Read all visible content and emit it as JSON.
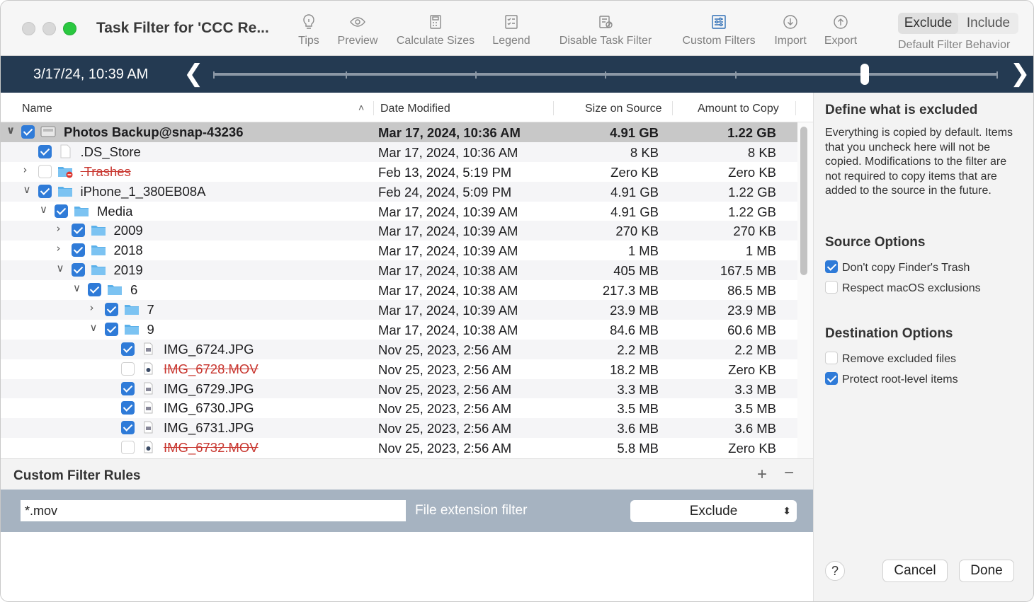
{
  "window": {
    "title": "Task Filter for 'CCC Re..."
  },
  "toolbar": {
    "items": [
      {
        "label": "Tips",
        "icon": "lightbulb-icon"
      },
      {
        "label": "Preview",
        "icon": "eye-icon"
      },
      {
        "label": "Calculate Sizes",
        "icon": "calculator-icon"
      },
      {
        "label": "Legend",
        "icon": "legend-icon"
      },
      {
        "label": "Disable Task Filter",
        "icon": "filter-disable-icon"
      },
      {
        "label": "Custom Filters",
        "icon": "sliders-icon"
      },
      {
        "label": "Import",
        "icon": "import-icon"
      },
      {
        "label": "Export",
        "icon": "export-icon"
      }
    ],
    "behavior": {
      "exclude": "Exclude",
      "include": "Include",
      "label": "Default Filter Behavior",
      "selected": "Exclude"
    }
  },
  "timeline": {
    "date": "3/17/24, 10:39 AM",
    "prev": "❮",
    "next": "❯"
  },
  "table": {
    "headers": {
      "name": "Name",
      "sort": "˄",
      "date": "Date Modified",
      "size": "Size on Source",
      "amount": "Amount to Copy"
    },
    "rows": [
      {
        "name": "Photos Backup@snap-43236",
        "date": "Mar 17, 2024, 10:36 AM",
        "size": "4.91 GB",
        "amount": "1.22 GB",
        "level": 0,
        "chevron": "∨",
        "checked": true,
        "icon": "disk-icon",
        "strike": false,
        "selected": true
      },
      {
        "name": ".DS_Store",
        "date": "Mar 17, 2024, 10:36 AM",
        "size": "8 KB",
        "amount": "8 KB",
        "level": 1,
        "chevron": "",
        "checked": true,
        "icon": "file-icon",
        "strike": false
      },
      {
        "name": ".Trashes",
        "date": "Feb 13, 2024, 5:19 PM",
        "size": "Zero KB",
        "amount": "Zero KB",
        "level": 1,
        "chevron": "›",
        "checked": false,
        "icon": "folder-excluded-icon",
        "strike": true
      },
      {
        "name": "iPhone_1_380EB08A",
        "date": "Feb 24, 2024, 5:09 PM",
        "size": "4.91 GB",
        "amount": "1.22 GB",
        "level": 1,
        "chevron": "∨",
        "checked": true,
        "icon": "folder-icon",
        "strike": false
      },
      {
        "name": "Media",
        "date": "Mar 17, 2024, 10:39 AM",
        "size": "4.91 GB",
        "amount": "1.22 GB",
        "level": 2,
        "chevron": "∨",
        "checked": true,
        "icon": "folder-icon",
        "strike": false
      },
      {
        "name": "2009",
        "date": "Mar 17, 2024, 10:39 AM",
        "size": "270 KB",
        "amount": "270 KB",
        "level": 3,
        "chevron": "›",
        "checked": true,
        "icon": "folder-icon",
        "strike": false
      },
      {
        "name": "2018",
        "date": "Mar 17, 2024, 10:39 AM",
        "size": "1 MB",
        "amount": "1 MB",
        "level": 3,
        "chevron": "›",
        "checked": true,
        "icon": "folder-icon",
        "strike": false
      },
      {
        "name": "2019",
        "date": "Mar 17, 2024, 10:38 AM",
        "size": "405 MB",
        "amount": "167.5 MB",
        "level": 3,
        "chevron": "∨",
        "checked": true,
        "icon": "folder-icon",
        "strike": false
      },
      {
        "name": "6",
        "date": "Mar 17, 2024, 10:38 AM",
        "size": "217.3 MB",
        "amount": "86.5 MB",
        "level": 4,
        "chevron": "∨",
        "checked": true,
        "icon": "folder-icon",
        "strike": false
      },
      {
        "name": "7",
        "date": "Mar 17, 2024, 10:39 AM",
        "size": "23.9 MB",
        "amount": "23.9 MB",
        "level": 5,
        "chevron": "›",
        "checked": true,
        "icon": "folder-icon",
        "strike": false
      },
      {
        "name": "9",
        "date": "Mar 17, 2024, 10:38 AM",
        "size": "84.6 MB",
        "amount": "60.6 MB",
        "level": 5,
        "chevron": "∨",
        "checked": true,
        "icon": "folder-icon",
        "strike": false
      },
      {
        "name": "IMG_6724.JPG",
        "date": "Nov 25, 2023, 2:56 AM",
        "size": "2.2 MB",
        "amount": "2.2 MB",
        "level": 6,
        "chevron": "",
        "checked": true,
        "icon": "image-file-icon",
        "strike": false
      },
      {
        "name": "IMG_6728.MOV",
        "date": "Nov 25, 2023, 2:56 AM",
        "size": "18.2 MB",
        "amount": "Zero KB",
        "level": 6,
        "chevron": "",
        "checked": false,
        "icon": "movie-file-icon",
        "strike": true
      },
      {
        "name": "IMG_6729.JPG",
        "date": "Nov 25, 2023, 2:56 AM",
        "size": "3.3 MB",
        "amount": "3.3 MB",
        "level": 6,
        "chevron": "",
        "checked": true,
        "icon": "image-file-icon",
        "strike": false
      },
      {
        "name": "IMG_6730.JPG",
        "date": "Nov 25, 2023, 2:56 AM",
        "size": "3.5 MB",
        "amount": "3.5 MB",
        "level": 6,
        "chevron": "",
        "checked": true,
        "icon": "image-file-icon",
        "strike": false
      },
      {
        "name": "IMG_6731.JPG",
        "date": "Nov 25, 2023, 2:56 AM",
        "size": "3.6 MB",
        "amount": "3.6 MB",
        "level": 6,
        "chevron": "",
        "checked": true,
        "icon": "image-file-icon",
        "strike": false
      },
      {
        "name": "IMG_6732.MOV",
        "date": "Nov 25, 2023, 2:56 AM",
        "size": "5.8 MB",
        "amount": "Zero KB",
        "level": 6,
        "chevron": "",
        "checked": false,
        "icon": "movie-file-icon",
        "strike": true
      }
    ]
  },
  "rules": {
    "title": "Custom Filter Rules",
    "add": "+",
    "remove": "−",
    "pattern": "*.mov",
    "type": "File extension filter",
    "action": "Exclude",
    "action_arrows": "⬍"
  },
  "sidebar": {
    "title": "Define what is excluded",
    "description": "Everything is copied by default. Items that you uncheck here will not be copied. Modifications to the filter are not required to copy items that are added to the source in the future.",
    "source_title": "Source Options",
    "source_options": [
      {
        "label": "Don't copy Finder's Trash",
        "checked": true
      },
      {
        "label": "Respect macOS exclusions",
        "checked": false
      }
    ],
    "dest_title": "Destination Options",
    "dest_options": [
      {
        "label": "Remove excluded files",
        "checked": false
      },
      {
        "label": "Protect root-level items",
        "checked": true
      }
    ]
  },
  "footer": {
    "help": "?",
    "cancel": "Cancel",
    "done": "Done"
  },
  "colors": {
    "accent": "#2f7bd8",
    "timeline": "#243a52",
    "excluded": "#c8362f",
    "selected_row": "#c8c8c8"
  }
}
